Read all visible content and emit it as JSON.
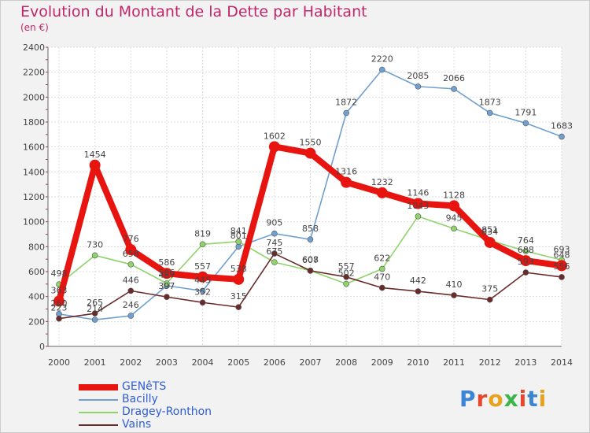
{
  "title": "Evolution du Montant de la Dette par Habitant",
  "subtitle": "(en €)",
  "logo": {
    "letters": [
      "P",
      "r",
      "o",
      "x",
      "i",
      "t",
      "i"
    ],
    "colors": [
      "#3a86d4",
      "#e8472b",
      "#e8a21b",
      "#3ab54a",
      "#e8472b",
      "#3a86d4",
      "#e8a21b"
    ]
  },
  "chart_data": {
    "type": "line",
    "title": "Evolution du Montant de la Dette par Habitant",
    "ylabel": "(en €)",
    "x": [
      2000,
      2001,
      2002,
      2003,
      2004,
      2005,
      2006,
      2007,
      2008,
      2009,
      2010,
      2011,
      2012,
      2013,
      2014
    ],
    "ylim": [
      0,
      2400
    ],
    "yticks": [
      0,
      200,
      400,
      600,
      800,
      1000,
      1200,
      1400,
      1600,
      1800,
      2000,
      2200,
      2400
    ],
    "grid": true,
    "legend_position": "bottom-left",
    "series": [
      {
        "name": "GENêTS",
        "color": "#e8140f",
        "values": [
          363,
          1454,
          776,
          586,
          557,
          538,
          1602,
          1550,
          1316,
          1232,
          1146,
          1128,
          834,
          688,
          648
        ]
      },
      {
        "name": "Bacilly",
        "color": "#6fa0d0",
        "values": [
          260,
          214,
          246,
          487,
          445,
          801,
          905,
          858,
          1872,
          2220,
          2085,
          2066,
          1873,
          1791,
          1683
        ]
      },
      {
        "name": "Dragey-Ronthon",
        "color": "#8fd46a",
        "values": [
          498,
          730,
          658,
          506,
          819,
          841,
          675,
          608,
          502,
          622,
          1043,
          945,
          851,
          764,
          693
        ]
      },
      {
        "name": "Vains",
        "color": "#6b2a2a",
        "values": [
          223,
          265,
          446,
          397,
          352,
          315,
          745,
          607,
          557,
          470,
          442,
          410,
          375,
          593,
          556
        ]
      }
    ]
  }
}
